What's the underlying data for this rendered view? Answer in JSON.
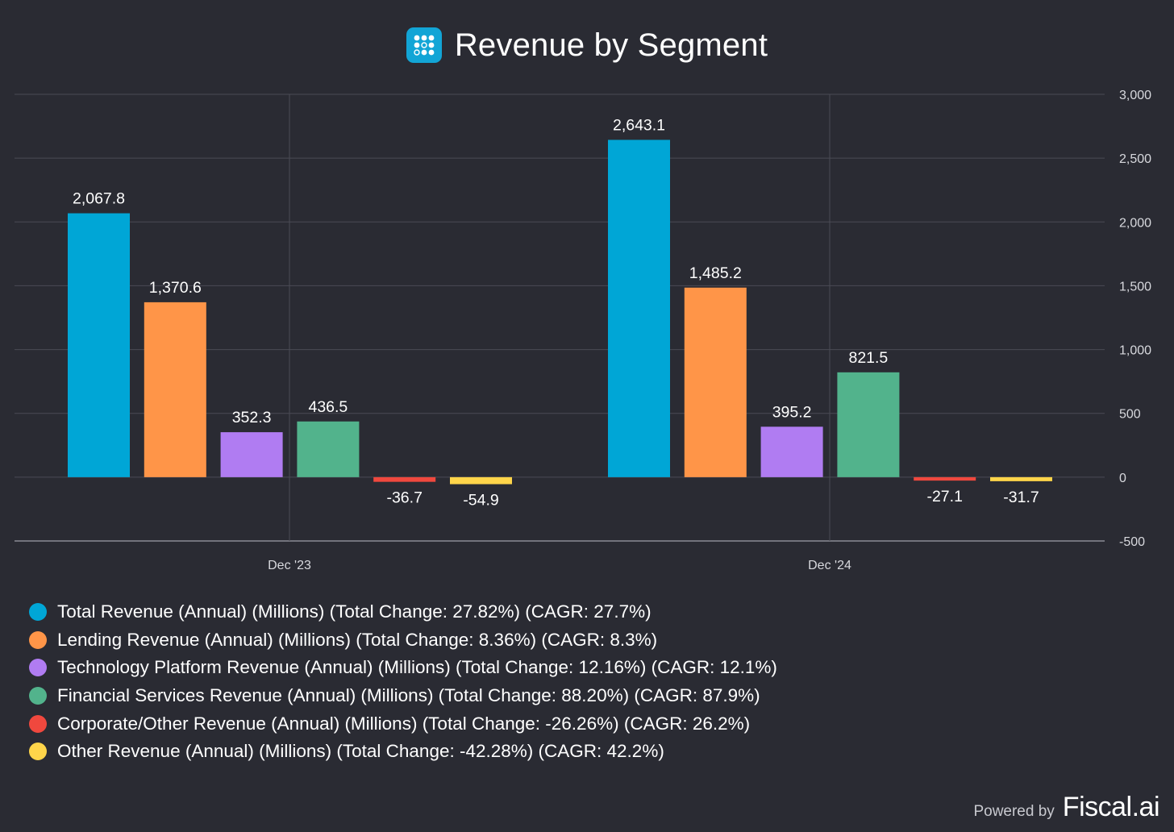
{
  "header": {
    "title": "Revenue by Segment",
    "icon": "grid-dots-logo-icon"
  },
  "footer": {
    "powered_by": "Powered by",
    "brand": "Fiscal.ai"
  },
  "colors": {
    "background": "#2a2b33",
    "grid": "#4a4b55",
    "logo": "#12a5d6"
  },
  "chart_data": {
    "type": "bar",
    "title": "Revenue by Segment",
    "categories": [
      "Dec '23",
      "Dec '24"
    ],
    "ylim": [
      -500,
      3000
    ],
    "yticks": [
      3000,
      2500,
      2000,
      1500,
      1000,
      500,
      0,
      -500
    ],
    "ytick_labels": [
      "3,000",
      "2,500",
      "2,000",
      "1,500",
      "1,000",
      "500",
      "0",
      "-500"
    ],
    "y_axis_side": "right",
    "grid": true,
    "legend_position": "bottom",
    "series": [
      {
        "name": "Total Revenue (Annual) (Millions) (Total Change: 27.82%) (CAGR: 27.7%)",
        "color": "#00a6d6",
        "values": [
          2067.8,
          2643.1
        ],
        "labels": [
          "2,067.8",
          "2,643.1"
        ]
      },
      {
        "name": "Lending Revenue (Annual) (Millions) (Total Change: 8.36%) (CAGR: 8.3%)",
        "color": "#ff9548",
        "values": [
          1370.6,
          1485.2
        ],
        "labels": [
          "1,370.6",
          "1,485.2"
        ]
      },
      {
        "name": "Technology Platform Revenue (Annual) (Millions) (Total Change: 12.16%) (CAGR: 12.1%)",
        "color": "#b07cf2",
        "values": [
          352.3,
          395.2
        ],
        "labels": [
          "352.3",
          "395.2"
        ]
      },
      {
        "name": "Financial Services Revenue (Annual) (Millions) (Total Change: 88.20%) (CAGR: 87.9%)",
        "color": "#52b38c",
        "values": [
          436.5,
          821.5
        ],
        "labels": [
          "436.5",
          "821.5"
        ]
      },
      {
        "name": "Corporate/Other Revenue (Annual) (Millions) (Total Change: -26.26%) (CAGR: 26.2%)",
        "color": "#f0483e",
        "values": [
          -36.7,
          -27.1
        ],
        "labels": [
          "-36.7",
          "-27.1"
        ]
      },
      {
        "name": "Other Revenue (Annual) (Millions) (Total Change: -42.28%) (CAGR: 42.2%)",
        "color": "#ffd54a",
        "values": [
          -54.9,
          -31.7
        ],
        "labels": [
          "-54.9",
          "-31.7"
        ]
      }
    ]
  }
}
